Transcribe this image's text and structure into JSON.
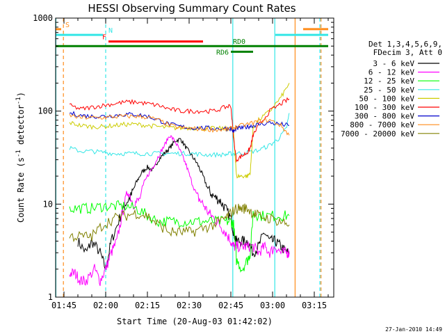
{
  "chart_data": {
    "type": "line",
    "title": "HESSI Observing Summary Count Rates",
    "xlabel": "Start Time (20-Aug-03 01:42:02)",
    "ylabel": "Count Rate (s",
    "ylabel_sup": "-1",
    "ylabel_tail": " detector",
    "ylabel_sup2": "-1",
    "ylabel_end": ")",
    "yscale": "log",
    "ylim": [
      1,
      1000
    ],
    "xlim_minutes": [
      -3,
      97
    ],
    "x_ticks": [
      {
        "t": 0,
        "label": "01:45"
      },
      {
        "t": 15,
        "label": "02:00"
      },
      {
        "t": 30,
        "label": "02:15"
      },
      {
        "t": 45,
        "label": "02:30"
      },
      {
        "t": 60,
        "label": "02:45"
      },
      {
        "t": 75,
        "label": "03:00"
      },
      {
        "t": 90,
        "label": "03:15"
      }
    ],
    "y_ticks": [
      {
        "v": 1,
        "label": "1"
      },
      {
        "v": 10,
        "label": "10"
      },
      {
        "v": 100,
        "label": "100"
      },
      {
        "v": 1000,
        "label": "1000"
      }
    ],
    "legend_header": [
      "Det 1,3,4,5,6,9,",
      "FDecim 3, Att 0"
    ],
    "legend_placement": "right",
    "flags": [
      {
        "label": "S",
        "color": "#ff8c1a",
        "segments": [
          [
            -3,
            -1
          ],
          [
            86,
            95
          ]
        ],
        "y": 760
      },
      {
        "label": "N",
        "color": "#33e6e6",
        "segments": [
          [
            -3,
            14
          ],
          [
            76,
            95
          ]
        ],
        "y": 660
      },
      {
        "label": "F",
        "color": "#ff0000",
        "segments": [
          [
            16,
            50
          ]
        ],
        "y": 560
      },
      {
        "label": "RD0",
        "color": "#008000",
        "segments": [
          [
            -3,
            95
          ]
        ],
        "y": 500
      },
      {
        "label": "RD6",
        "color": "#008000",
        "segments": [
          [
            60,
            68
          ]
        ],
        "y": 435
      }
    ],
    "vertical_lines": [
      {
        "t": -2.9,
        "color": "#33e6e6",
        "style": "solid"
      },
      {
        "t": -0.2,
        "color": "#ff8c1a",
        "style": "dashed"
      },
      {
        "t": 15,
        "color": "#33e6e6",
        "style": "dashed"
      },
      {
        "t": 60.7,
        "color": "#33e6e6",
        "style": "solid"
      },
      {
        "t": 75.8,
        "color": "#33e6e6",
        "style": "solid"
      },
      {
        "t": 83.1,
        "color": "#ff8c1a",
        "style": "solid"
      },
      {
        "t": 92,
        "color": "#33e6e6",
        "style": "dashed"
      },
      {
        "t": 92.4,
        "color": "#ff8c1a",
        "style": "dashed"
      }
    ],
    "series": [
      {
        "name": "3 - 6 keV",
        "color": "#000000",
        "x": [
          5,
          8,
          10,
          13,
          15,
          17,
          20,
          22,
          24,
          26,
          28,
          30,
          32,
          34,
          36,
          38,
          40,
          42,
          44,
          46,
          48,
          50,
          52,
          54,
          56,
          58,
          60,
          61,
          62,
          64,
          66,
          68,
          70,
          72,
          74,
          76,
          78,
          80,
          81
        ],
        "values": [
          4,
          3,
          4,
          3,
          2,
          4,
          7,
          10,
          12,
          17,
          22,
          25,
          23,
          30,
          35,
          40,
          48,
          50,
          40,
          33,
          27,
          20,
          14,
          12,
          11,
          9,
          7,
          5,
          4,
          4,
          4,
          3,
          3.5,
          5,
          4,
          4,
          3.5,
          3,
          3
        ]
      },
      {
        "name": "6 - 12 keV",
        "color": "#ff00ff",
        "x": [
          2,
          4,
          6,
          8,
          11,
          13,
          15,
          17,
          19,
          21,
          23,
          25,
          27,
          30,
          32,
          34,
          36,
          38,
          40,
          42,
          44,
          46,
          48,
          50,
          52,
          54,
          56,
          58,
          60,
          61,
          62,
          64,
          66,
          68,
          70,
          72,
          74,
          76,
          78,
          80,
          81
        ],
        "values": [
          1.8,
          1.8,
          1.5,
          1.5,
          2,
          1.5,
          2,
          3,
          4,
          8,
          14,
          10,
          11,
          20,
          25,
          33,
          42,
          55,
          47,
          36,
          26,
          17,
          12,
          10,
          8,
          7,
          6,
          5,
          4,
          3.5,
          3.5,
          3.5,
          3.5,
          3.5,
          3,
          3.5,
          3,
          3.5,
          3,
          3,
          3
        ]
      },
      {
        "name": "12 - 25 keV",
        "color": "#00ff00",
        "x": [
          2,
          6,
          10,
          14,
          18,
          22,
          26,
          30,
          34,
          38,
          42,
          46,
          50,
          54,
          58,
          60,
          61,
          62,
          64,
          66,
          67,
          68,
          70,
          74,
          78,
          81
        ],
        "values": [
          9,
          9,
          9,
          9.5,
          9.5,
          9.5,
          9,
          7.5,
          6.5,
          6.5,
          6.5,
          6.5,
          6.5,
          6.5,
          6.5,
          6.5,
          6,
          2.5,
          2,
          2.5,
          3,
          8,
          7.5,
          7.5,
          7.5,
          7.5
        ]
      },
      {
        "name": "25 - 50 keV",
        "color": "#33e6e6",
        "x": [
          2,
          6,
          10,
          14,
          18,
          22,
          26,
          30,
          34,
          38,
          42,
          46,
          50,
          54,
          58,
          60,
          62,
          66,
          70,
          74,
          77,
          80,
          81
        ],
        "values": [
          40,
          37,
          37,
          36,
          35,
          35,
          35,
          35,
          35,
          35,
          35,
          35,
          34,
          34,
          34,
          35,
          35,
          36,
          38,
          43,
          50,
          65,
          95
        ]
      },
      {
        "name": "50 - 100 keV",
        "color": "#cccc00",
        "x": [
          2,
          6,
          10,
          14,
          18,
          22,
          26,
          30,
          34,
          38,
          42,
          46,
          50,
          54,
          58,
          60,
          61,
          62,
          64,
          66,
          67,
          68,
          70,
          74,
          78,
          81
        ],
        "values": [
          75,
          70,
          68,
          68,
          70,
          72,
          72,
          70,
          68,
          66,
          66,
          66,
          65,
          65,
          65,
          65,
          60,
          20,
          20,
          20,
          22,
          65,
          80,
          100,
          140,
          200
        ]
      },
      {
        "name": "100 - 300 keV",
        "color": "#ff0000",
        "x": [
          2,
          6,
          10,
          14,
          18,
          22,
          26,
          30,
          34,
          38,
          42,
          46,
          50,
          54,
          58,
          60,
          61,
          62,
          64,
          66,
          67,
          68,
          70,
          74,
          78,
          81
        ],
        "values": [
          115,
          105,
          110,
          115,
          120,
          125,
          125,
          120,
          115,
          105,
          100,
          100,
          100,
          100,
          110,
          115,
          50,
          30,
          33,
          36,
          40,
          55,
          70,
          100,
          120,
          135
        ]
      },
      {
        "name": "300 - 800 keV",
        "color": "#0000cc",
        "x": [
          2,
          6,
          10,
          14,
          18,
          22,
          26,
          30,
          34,
          38,
          42,
          46,
          50,
          54,
          58,
          60,
          61,
          62,
          64,
          66,
          68,
          70,
          74,
          78,
          81
        ],
        "values": [
          95,
          90,
          88,
          88,
          90,
          92,
          92,
          88,
          80,
          72,
          68,
          66,
          66,
          65,
          65,
          65,
          60,
          65,
          66,
          68,
          70,
          72,
          75,
          72,
          70
        ]
      },
      {
        "name": "800 - 7000 keV",
        "color": "#ff8c1a",
        "x": [
          2,
          6,
          10,
          14,
          18,
          22,
          26,
          30,
          34,
          38,
          42,
          46,
          50,
          54,
          58,
          60,
          62,
          66,
          70,
          74,
          78,
          81
        ],
        "values": [
          90,
          85,
          85,
          85,
          87,
          88,
          88,
          86,
          80,
          70,
          66,
          65,
          64,
          63,
          63,
          65,
          68,
          72,
          78,
          80,
          70,
          55
        ]
      },
      {
        "name": "7000 - 20000 keV",
        "color": "#808000",
        "x": [
          2,
          6,
          10,
          14,
          18,
          22,
          26,
          30,
          34,
          38,
          42,
          46,
          50,
          54,
          58,
          60,
          62,
          64,
          66,
          68,
          70,
          74,
          78,
          81
        ],
        "values": [
          4.5,
          4.5,
          4.5,
          6,
          7,
          7.5,
          8,
          7.5,
          6,
          5,
          5,
          5,
          5.5,
          6,
          7,
          8,
          9,
          9,
          9,
          8,
          7.5,
          7,
          6.5,
          6
        ]
      }
    ],
    "timestamp": "27-Jan-2010 14:49"
  }
}
